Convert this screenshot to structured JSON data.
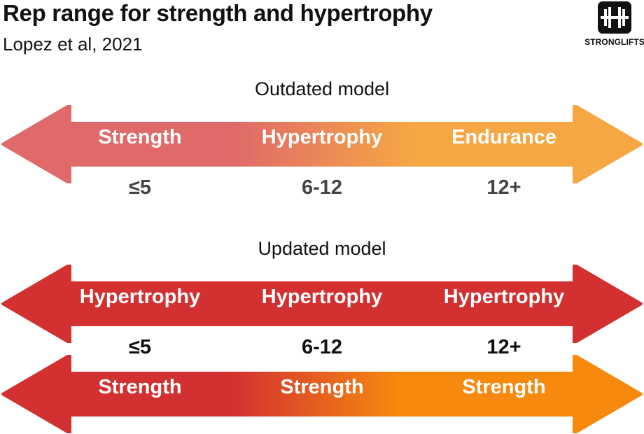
{
  "title": "Rep range for strength and hypertrophy",
  "subtitle": "Lopez et al, 2021",
  "logo": {
    "text": "STRONGLIFTS",
    "icon": "barbell-icon"
  },
  "outdated": {
    "heading": "Outdated model",
    "labels": [
      "Strength",
      "Hypertrophy",
      "Endurance"
    ],
    "reps": [
      "≤5",
      "6-12",
      "12+"
    ]
  },
  "updated": {
    "heading": "Updated model",
    "top_labels": [
      "Hypertrophy",
      "Hypertrophy",
      "Hypertrophy"
    ],
    "reps": [
      "≤5",
      "6-12",
      "12+"
    ],
    "bottom_labels": [
      "Strength",
      "Strength",
      "Strength"
    ]
  },
  "colors": {
    "coral": "#e0696a",
    "light_orange": "#f5a744",
    "red": "#d33131",
    "orange": "#f6890e",
    "grey_text": "#444444",
    "dark_text": "#111111"
  }
}
